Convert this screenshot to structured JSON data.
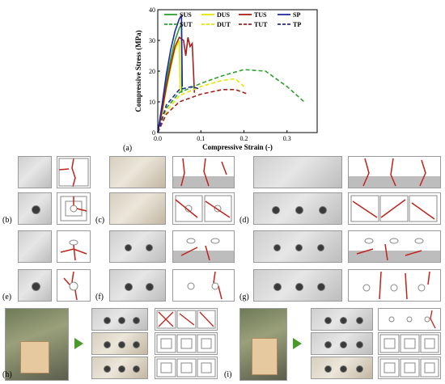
{
  "chart_data": {
    "type": "line",
    "xlabel": "Compressive Strain (-)",
    "ylabel": "Compressive Stress (MPa)",
    "xlim": [
      0,
      0.37
    ],
    "ylim": [
      0,
      40
    ],
    "xticks": [
      "0.0",
      "0.1",
      "0.2",
      "0.3"
    ],
    "yticks": [
      "0",
      "10",
      "20",
      "30",
      "40"
    ],
    "legend_position": "top",
    "series": [
      {
        "name": "SUS",
        "color": "#2ca02c",
        "dash": false,
        "x": [
          0,
          0.01,
          0.02,
          0.03,
          0.04,
          0.05,
          0.055,
          0.056
        ],
        "y": [
          0,
          8,
          17,
          24,
          30,
          34,
          35,
          13
        ]
      },
      {
        "name": "DUS",
        "color": "#e6e600",
        "dash": false,
        "x": [
          0,
          0.01,
          0.02,
          0.03,
          0.04,
          0.05,
          0.052
        ],
        "y": [
          0,
          6,
          14,
          21,
          27,
          30,
          13
        ]
      },
      {
        "name": "TUS",
        "color": "#a62020",
        "dash": false,
        "x": [
          0,
          0.01,
          0.02,
          0.03,
          0.04,
          0.05,
          0.06,
          0.065,
          0.07,
          0.075,
          0.08,
          0.085
        ],
        "y": [
          0,
          7,
          15,
          22,
          28,
          31,
          30,
          25,
          31,
          28,
          29,
          13
        ]
      },
      {
        "name": "SP",
        "color": "#1f2aa8",
        "dash": false,
        "x": [
          0,
          0.01,
          0.02,
          0.03,
          0.04,
          0.05,
          0.055,
          0.057
        ],
        "y": [
          0,
          9,
          19,
          27,
          33,
          37,
          38,
          15
        ]
      },
      {
        "name": "SUT",
        "color": "#2ca02c",
        "dash": true,
        "x": [
          0,
          0.02,
          0.05,
          0.1,
          0.15,
          0.2,
          0.25,
          0.3,
          0.34
        ],
        "y": [
          0,
          8,
          13,
          16,
          18.5,
          20.5,
          20,
          15,
          10
        ]
      },
      {
        "name": "DUT",
        "color": "#e6e600",
        "dash": true,
        "x": [
          0,
          0.02,
          0.05,
          0.1,
          0.15,
          0.18,
          0.2
        ],
        "y": [
          0,
          7,
          12,
          15,
          17,
          17.5,
          15
        ]
      },
      {
        "name": "TUT",
        "color": "#a62020",
        "dash": true,
        "x": [
          0,
          0.02,
          0.05,
          0.1,
          0.15,
          0.18,
          0.21
        ],
        "y": [
          0,
          6,
          10,
          12.5,
          14,
          14,
          12.5
        ]
      },
      {
        "name": "TP",
        "color": "#1f2aa8",
        "dash": true,
        "x": [
          0,
          0.02,
          0.05,
          0.08,
          0.1
        ],
        "y": [
          0,
          9,
          14,
          15,
          14
        ]
      }
    ]
  },
  "labels": {
    "a": "(a)",
    "b": "(b)",
    "c": "(c)",
    "d": "(d)",
    "e": "(e)",
    "f": "(f)",
    "g": "(g)",
    "h": "(h)",
    "i": "(i)"
  },
  "arrow_color": "#4a9a2a"
}
